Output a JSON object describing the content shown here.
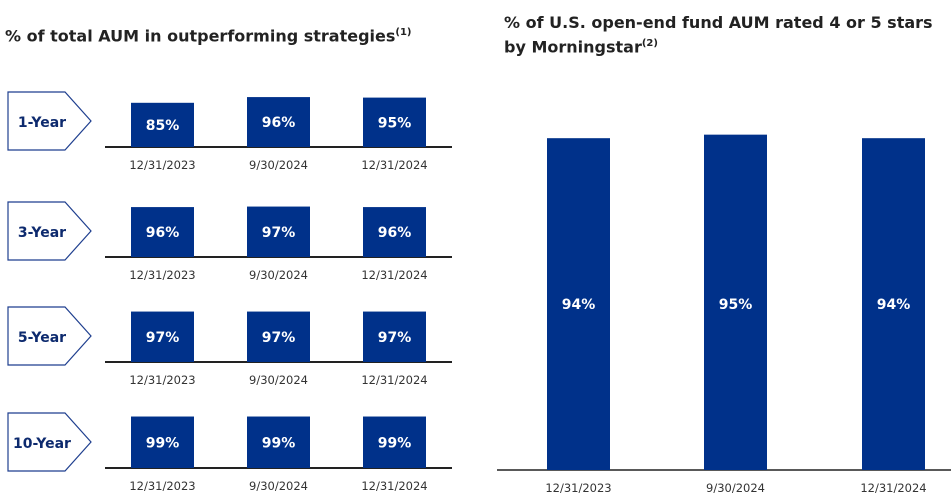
{
  "left": {
    "title": "% of total AUM in outperforming strategies",
    "footnote": "(1)"
  },
  "right": {
    "title": "% of U.S. open-end fund AUM rated 4 or 5 stars by Morningstar",
    "footnote": "(2)"
  },
  "colors": {
    "bar": "#00318A",
    "label_border": "#1F3F8F",
    "label_text": "#0D2A6E",
    "axis": "#222222"
  },
  "chart_data": [
    {
      "type": "bar",
      "title": "% of total AUM in outperforming strategies",
      "categories": [
        "12/31/2023",
        "9/30/2024",
        "12/31/2024"
      ],
      "panels": [
        {
          "label": "1-Year",
          "values": [
            85,
            96,
            95
          ]
        },
        {
          "label": "3-Year",
          "values": [
            96,
            97,
            96
          ]
        },
        {
          "label": "5-Year",
          "values": [
            97,
            97,
            97
          ]
        },
        {
          "label": "10-Year",
          "values": [
            99,
            99,
            99
          ]
        }
      ],
      "unit": "%"
    },
    {
      "type": "bar",
      "title": "% of U.S. open-end fund AUM rated 4 or 5 stars by Morningstar",
      "categories": [
        "12/31/2023",
        "9/30/2024",
        "12/31/2024"
      ],
      "values": [
        94,
        95,
        94
      ],
      "unit": "%"
    }
  ]
}
